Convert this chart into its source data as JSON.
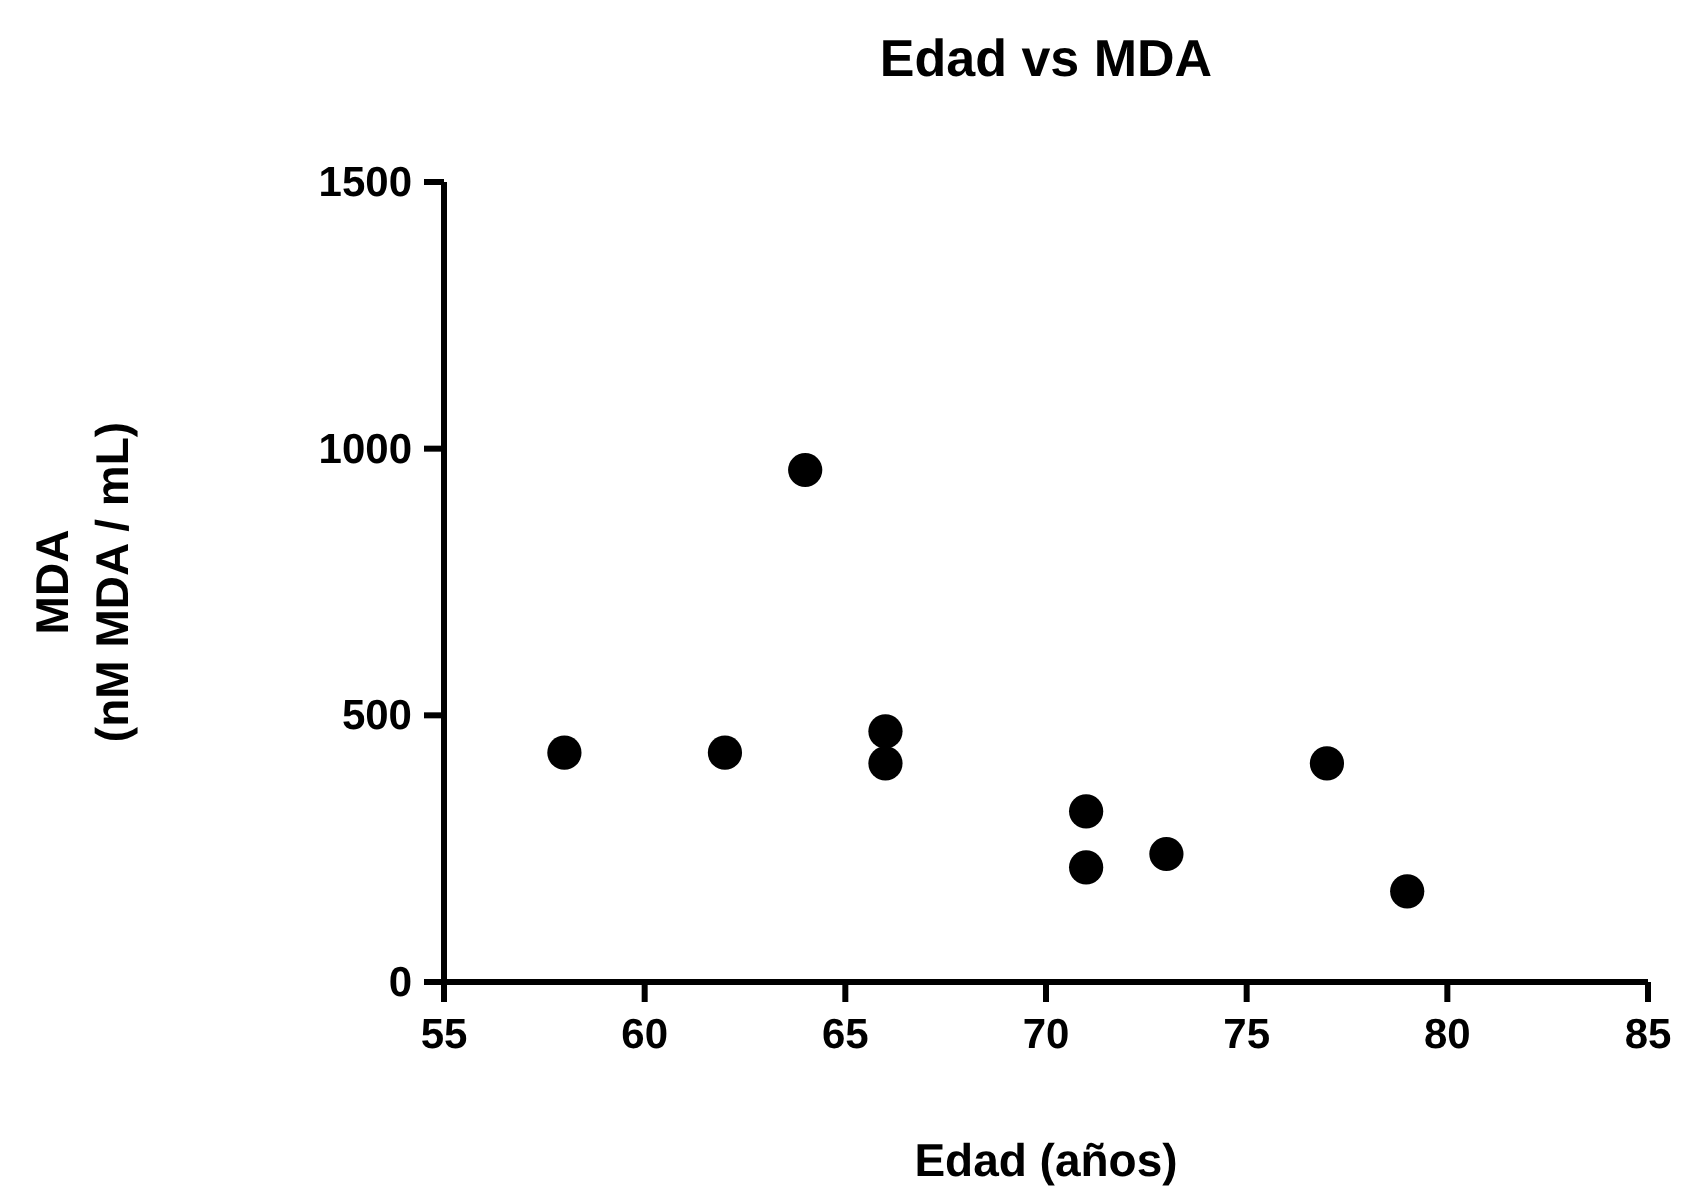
{
  "chart_data": {
    "type": "scatter",
    "title": "Edad vs MDA",
    "xlabel": "Edad (años)",
    "ylabel": "MDA\n(nM MDA / mL)",
    "x": [
      58,
      62,
      64,
      66,
      66,
      71,
      71,
      73,
      77,
      79
    ],
    "values": [
      430,
      430,
      960,
      470,
      410,
      320,
      215,
      240,
      410,
      170
    ],
    "color": "#000000",
    "marker": "circle",
    "xlim": [
      55,
      85
    ],
    "xticks": [
      55,
      60,
      65,
      70,
      75,
      80,
      85
    ],
    "ylim": [
      0,
      1500
    ],
    "yticks": [
      0,
      500,
      1000,
      1500
    ],
    "grid": false
  }
}
